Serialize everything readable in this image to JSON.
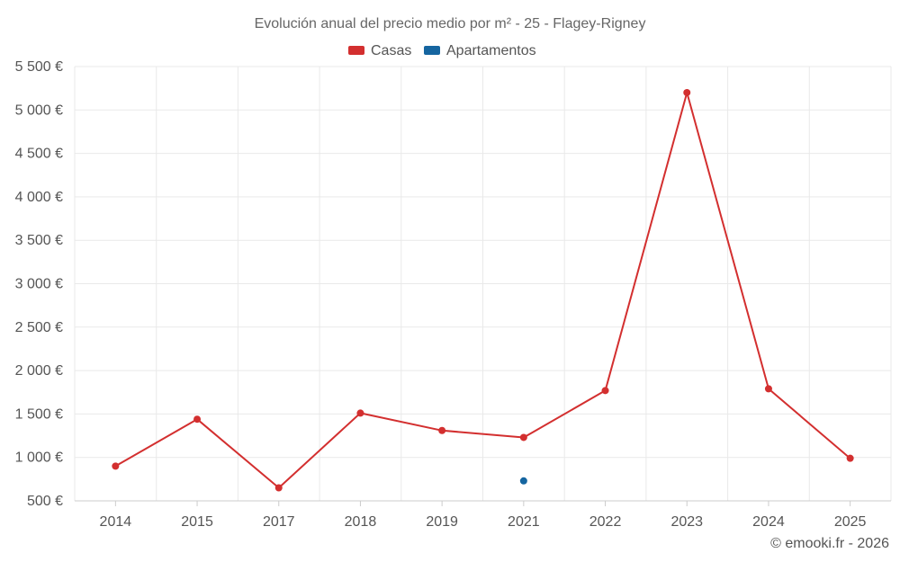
{
  "chart_data": {
    "type": "line",
    "title": "Evolución anual del precio medio por m² - 25 - Flagey-Rigney",
    "categories": [
      "2014",
      "2015",
      "2017",
      "2018",
      "2019",
      "2021",
      "2022",
      "2023",
      "2024",
      "2025"
    ],
    "series": [
      {
        "name": "Casas",
        "color": "#d32f2f",
        "values": [
          900,
          1440,
          650,
          1510,
          1310,
          1230,
          1770,
          5200,
          1790,
          990
        ]
      },
      {
        "name": "Apartamentos",
        "color": "#1565a0",
        "values": [
          null,
          null,
          null,
          null,
          null,
          730,
          null,
          null,
          null,
          null
        ]
      }
    ],
    "ylim": [
      500,
      5500
    ],
    "yticks": [
      500,
      1000,
      1500,
      2000,
      2500,
      3000,
      3500,
      4000,
      4500,
      5000,
      5500
    ],
    "ytick_labels": [
      "500 €",
      "1 000 €",
      "1 500 €",
      "2 000 €",
      "2 500 €",
      "3 000 €",
      "3 500 €",
      "4 000 €",
      "4 500 €",
      "5 000 €",
      "5 500 €"
    ],
    "xlabel": "",
    "ylabel": "",
    "grid": true,
    "legend_position": "top-center"
  },
  "credit": "© emooki.fr - 2026"
}
